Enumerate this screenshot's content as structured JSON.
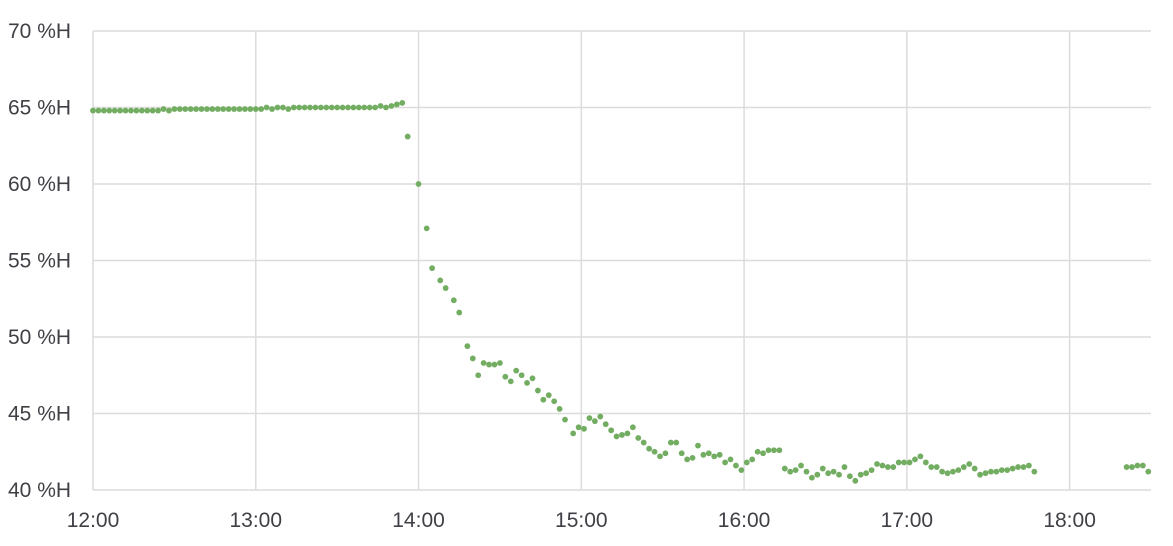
{
  "chart_data": {
    "type": "scatter",
    "title": "",
    "xlabel": "",
    "ylabel": "",
    "x_unit": "time",
    "y_unit": "%H",
    "xlim": [
      "12:00",
      "18:30"
    ],
    "ylim": [
      40,
      70
    ],
    "grid": true,
    "legend": "none",
    "colors": {
      "series": "#73ad62",
      "grid": "#dcdcdc",
      "tick_text": "#3f3f46"
    },
    "x_ticks": [
      "12:00",
      "13:00",
      "14:00",
      "15:00",
      "16:00",
      "17:00",
      "18:00"
    ],
    "y_ticks": [
      "40 %H",
      "45 %H",
      "50 %H",
      "55 %H",
      "60 %H",
      "65 %H",
      "70 %H"
    ],
    "series": [
      {
        "points": [
          [
            "12:00",
            64.8
          ],
          [
            "12:02",
            64.8
          ],
          [
            "12:04",
            64.8
          ],
          [
            "12:06",
            64.8
          ],
          [
            "12:08",
            64.8
          ],
          [
            "12:10",
            64.8
          ],
          [
            "12:12",
            64.8
          ],
          [
            "12:14",
            64.8
          ],
          [
            "12:16",
            64.8
          ],
          [
            "12:18",
            64.8
          ],
          [
            "12:20",
            64.8
          ],
          [
            "12:22",
            64.8
          ],
          [
            "12:24",
            64.8
          ],
          [
            "12:26",
            64.9
          ],
          [
            "12:28",
            64.8
          ],
          [
            "12:30",
            64.9
          ],
          [
            "12:32",
            64.9
          ],
          [
            "12:34",
            64.9
          ],
          [
            "12:36",
            64.9
          ],
          [
            "12:38",
            64.9
          ],
          [
            "12:40",
            64.9
          ],
          [
            "12:42",
            64.9
          ],
          [
            "12:44",
            64.9
          ],
          [
            "12:46",
            64.9
          ],
          [
            "12:48",
            64.9
          ],
          [
            "12:50",
            64.9
          ],
          [
            "12:52",
            64.9
          ],
          [
            "12:54",
            64.9
          ],
          [
            "12:56",
            64.9
          ],
          [
            "12:58",
            64.9
          ],
          [
            "13:00",
            64.9
          ],
          [
            "13:02",
            64.9
          ],
          [
            "13:04",
            65.0
          ],
          [
            "13:06",
            64.9
          ],
          [
            "13:08",
            65.0
          ],
          [
            "13:10",
            65.0
          ],
          [
            "13:12",
            64.9
          ],
          [
            "13:14",
            65.0
          ],
          [
            "13:16",
            65.0
          ],
          [
            "13:18",
            65.0
          ],
          [
            "13:20",
            65.0
          ],
          [
            "13:22",
            65.0
          ],
          [
            "13:24",
            65.0
          ],
          [
            "13:26",
            65.0
          ],
          [
            "13:28",
            65.0
          ],
          [
            "13:30",
            65.0
          ],
          [
            "13:32",
            65.0
          ],
          [
            "13:34",
            65.0
          ],
          [
            "13:36",
            65.0
          ],
          [
            "13:38",
            65.0
          ],
          [
            "13:40",
            65.0
          ],
          [
            "13:42",
            65.0
          ],
          [
            "13:44",
            65.0
          ],
          [
            "13:46",
            65.1
          ],
          [
            "13:48",
            65.0
          ],
          [
            "13:50",
            65.1
          ],
          [
            "13:52",
            65.2
          ],
          [
            "13:54",
            65.3
          ],
          [
            "13:56",
            63.1
          ],
          [
            "14:00",
            60.0
          ],
          [
            "14:03",
            57.1
          ],
          [
            "14:05",
            54.5
          ],
          [
            "14:08",
            53.7
          ],
          [
            "14:10",
            53.2
          ],
          [
            "14:13",
            52.4
          ],
          [
            "14:15",
            51.6
          ],
          [
            "14:18",
            49.4
          ],
          [
            "14:20",
            48.6
          ],
          [
            "14:22",
            47.5
          ],
          [
            "14:24",
            48.3
          ],
          [
            "14:26",
            48.2
          ],
          [
            "14:28",
            48.2
          ],
          [
            "14:30",
            48.3
          ],
          [
            "14:32",
            47.4
          ],
          [
            "14:34",
            47.1
          ],
          [
            "14:36",
            47.8
          ],
          [
            "14:38",
            47.5
          ],
          [
            "14:40",
            47.0
          ],
          [
            "14:42",
            47.3
          ],
          [
            "14:44",
            46.5
          ],
          [
            "14:46",
            45.9
          ],
          [
            "14:48",
            46.2
          ],
          [
            "14:50",
            45.8
          ],
          [
            "14:52",
            45.3
          ],
          [
            "14:54",
            44.6
          ],
          [
            "14:57",
            43.7
          ],
          [
            "14:59",
            44.1
          ],
          [
            "15:01",
            44.0
          ],
          [
            "15:03",
            44.7
          ],
          [
            "15:05",
            44.5
          ],
          [
            "15:07",
            44.8
          ],
          [
            "15:09",
            44.3
          ],
          [
            "15:11",
            43.9
          ],
          [
            "15:13",
            43.5
          ],
          [
            "15:15",
            43.6
          ],
          [
            "15:17",
            43.7
          ],
          [
            "15:19",
            44.1
          ],
          [
            "15:21",
            43.4
          ],
          [
            "15:23",
            43.1
          ],
          [
            "15:25",
            42.7
          ],
          [
            "15:27",
            42.5
          ],
          [
            "15:29",
            42.2
          ],
          [
            "15:31",
            42.4
          ],
          [
            "15:33",
            43.1
          ],
          [
            "15:35",
            43.1
          ],
          [
            "15:37",
            42.4
          ],
          [
            "15:39",
            42.0
          ],
          [
            "15:41",
            42.1
          ],
          [
            "15:43",
            42.9
          ],
          [
            "15:45",
            42.3
          ],
          [
            "15:47",
            42.4
          ],
          [
            "15:49",
            42.2
          ],
          [
            "15:51",
            42.3
          ],
          [
            "15:53",
            41.8
          ],
          [
            "15:55",
            42.0
          ],
          [
            "15:57",
            41.6
          ],
          [
            "15:59",
            41.3
          ],
          [
            "16:01",
            41.8
          ],
          [
            "16:03",
            42.0
          ],
          [
            "16:05",
            42.5
          ],
          [
            "16:07",
            42.4
          ],
          [
            "16:09",
            42.6
          ],
          [
            "16:11",
            42.6
          ],
          [
            "16:13",
            42.6
          ],
          [
            "16:15",
            41.4
          ],
          [
            "16:17",
            41.2
          ],
          [
            "16:19",
            41.3
          ],
          [
            "16:21",
            41.6
          ],
          [
            "16:23",
            41.2
          ],
          [
            "16:25",
            40.8
          ],
          [
            "16:27",
            41.0
          ],
          [
            "16:29",
            41.4
          ],
          [
            "16:31",
            41.1
          ],
          [
            "16:33",
            41.2
          ],
          [
            "16:35",
            41.0
          ],
          [
            "16:37",
            41.5
          ],
          [
            "16:39",
            40.9
          ],
          [
            "16:41",
            40.6
          ],
          [
            "16:43",
            41.0
          ],
          [
            "16:45",
            41.1
          ],
          [
            "16:47",
            41.3
          ],
          [
            "16:49",
            41.7
          ],
          [
            "16:51",
            41.6
          ],
          [
            "16:53",
            41.5
          ],
          [
            "16:55",
            41.5
          ],
          [
            "16:57",
            41.8
          ],
          [
            "16:59",
            41.8
          ],
          [
            "17:01",
            41.8
          ],
          [
            "17:03",
            42.0
          ],
          [
            "17:05",
            42.2
          ],
          [
            "17:07",
            41.8
          ],
          [
            "17:09",
            41.5
          ],
          [
            "17:11",
            41.5
          ],
          [
            "17:13",
            41.2
          ],
          [
            "17:15",
            41.1
          ],
          [
            "17:17",
            41.2
          ],
          [
            "17:19",
            41.3
          ],
          [
            "17:21",
            41.5
          ],
          [
            "17:23",
            41.7
          ],
          [
            "17:25",
            41.4
          ],
          [
            "17:27",
            41.0
          ],
          [
            "17:29",
            41.1
          ],
          [
            "17:31",
            41.2
          ],
          [
            "17:33",
            41.2
          ],
          [
            "17:35",
            41.3
          ],
          [
            "17:37",
            41.3
          ],
          [
            "17:39",
            41.4
          ],
          [
            "17:41",
            41.5
          ],
          [
            "17:43",
            41.5
          ],
          [
            "17:45",
            41.6
          ],
          [
            "17:47",
            41.2
          ],
          [
            "18:21",
            41.5
          ],
          [
            "18:23",
            41.5
          ],
          [
            "18:25",
            41.6
          ],
          [
            "18:27",
            41.6
          ],
          [
            "18:29",
            41.2
          ]
        ]
      }
    ]
  }
}
